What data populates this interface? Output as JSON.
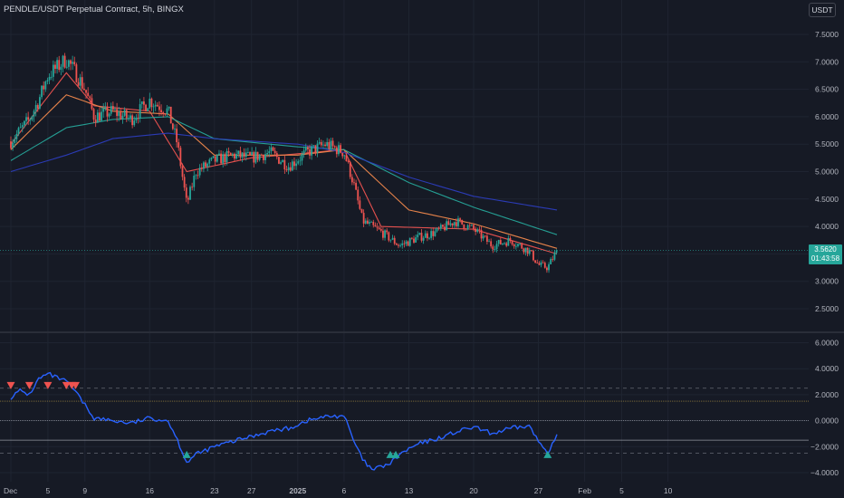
{
  "header": {
    "title": "PENDLE/USDT Perpetual Contract, 5h, BINGX",
    "currency_button": "USDT"
  },
  "price_label": {
    "price": "3.5620",
    "countdown": "01:43:58"
  },
  "colors": {
    "background": "#161a25",
    "candle_up": "#26a69a",
    "candle_down": "#ef5350",
    "ema_fast": "#ef5350",
    "ema_mid": "#f0884c",
    "ema_slow": "#26a69a",
    "ema_long": "#2c3dbd",
    "oscillator": "#2962ff",
    "signal_buy": "#26a69a",
    "signal_sell": "#ef5350"
  },
  "chart_data": [
    {
      "type": "candlestick",
      "title": "PENDLE/USDT Perpetual Contract, 5h, BINGX",
      "y_ticks": [
        "7.5000",
        "7.0000",
        "6.5000",
        "6.0000",
        "5.5000",
        "5.0000",
        "4.5000",
        "4.0000",
        "3.5000",
        "3.0000",
        "2.5000"
      ],
      "ylim": [
        2.3,
        7.8
      ],
      "x_ticks": [
        "Dec",
        "5",
        "9",
        "16",
        "23",
        "27",
        "2025",
        "6",
        "13",
        "20",
        "27",
        "Feb",
        "5",
        "10"
      ],
      "last_price": 3.562,
      "approx_close_path": [
        {
          "x": "Dec 1",
          "y": 5.55
        },
        {
          "x": "Dec 2",
          "y": 5.75
        },
        {
          "x": "Dec 3",
          "y": 5.95
        },
        {
          "x": "Dec 4",
          "y": 6.3
        },
        {
          "x": "Dec 5",
          "y": 6.75
        },
        {
          "x": "Dec 6",
          "y": 6.9
        },
        {
          "x": "Dec 7",
          "y": 7.05
        },
        {
          "x": "Dec 8",
          "y": 6.8
        },
        {
          "x": "Dec 9",
          "y": 6.5
        },
        {
          "x": "Dec 10",
          "y": 6.0
        },
        {
          "x": "Dec 12",
          "y": 6.1
        },
        {
          "x": "Dec 14",
          "y": 5.95
        },
        {
          "x": "Dec 16",
          "y": 6.3
        },
        {
          "x": "Dec 18",
          "y": 6.1
        },
        {
          "x": "Dec 19",
          "y": 5.5
        },
        {
          "x": "Dec 20",
          "y": 4.4
        },
        {
          "x": "Dec 21",
          "y": 5.0
        },
        {
          "x": "Dec 23",
          "y": 5.2
        },
        {
          "x": "Dec 25",
          "y": 5.3
        },
        {
          "x": "Dec 27",
          "y": 5.25
        },
        {
          "x": "Dec 29",
          "y": 5.35
        },
        {
          "x": "Dec 31",
          "y": 5.1
        },
        {
          "x": "Jan 2",
          "y": 5.35
        },
        {
          "x": "Jan 4",
          "y": 5.5
        },
        {
          "x": "Jan 6",
          "y": 5.35
        },
        {
          "x": "Jan 7",
          "y": 4.8
        },
        {
          "x": "Jan 8",
          "y": 4.1
        },
        {
          "x": "Jan 10",
          "y": 3.9
        },
        {
          "x": "Jan 12",
          "y": 3.65
        },
        {
          "x": "Jan 14",
          "y": 3.8
        },
        {
          "x": "Jan 16",
          "y": 3.9
        },
        {
          "x": "Jan 18",
          "y": 4.1
        },
        {
          "x": "Jan 20",
          "y": 3.95
        },
        {
          "x": "Jan 22",
          "y": 3.65
        },
        {
          "x": "Jan 24",
          "y": 3.75
        },
        {
          "x": "Jan 26",
          "y": 3.55
        },
        {
          "x": "Jan 27",
          "y": 3.3
        },
        {
          "x": "Jan 28",
          "y": 3.25
        },
        {
          "x": "Jan 29",
          "y": 3.562
        }
      ],
      "moving_averages": [
        {
          "color": "#ef5350",
          "path": [
            {
              "x": "Dec 1",
              "y": 5.5
            },
            {
              "x": "Dec 7",
              "y": 6.8
            },
            {
              "x": "Dec 10",
              "y": 6.2
            },
            {
              "x": "Dec 16",
              "y": 6.1
            },
            {
              "x": "Dec 20",
              "y": 5.0
            },
            {
              "x": "Dec 27",
              "y": 5.25
            },
            {
              "x": "Jan 6",
              "y": 5.4
            },
            {
              "x": "Jan 10",
              "y": 4.0
            },
            {
              "x": "Jan 20",
              "y": 3.95
            },
            {
              "x": "Jan 29",
              "y": 3.5
            }
          ]
        },
        {
          "color": "#f0884c",
          "path": [
            {
              "x": "Dec 1",
              "y": 5.4
            },
            {
              "x": "Dec 7",
              "y": 6.4
            },
            {
              "x": "Dec 12",
              "y": 6.1
            },
            {
              "x": "Dec 18",
              "y": 6.05
            },
            {
              "x": "Dec 23",
              "y": 5.3
            },
            {
              "x": "Jan 1",
              "y": 5.3
            },
            {
              "x": "Jan 6",
              "y": 5.4
            },
            {
              "x": "Jan 13",
              "y": 4.3
            },
            {
              "x": "Jan 20",
              "y": 4.05
            },
            {
              "x": "Jan 29",
              "y": 3.6
            }
          ]
        },
        {
          "color": "#26a69a",
          "path": [
            {
              "x": "Dec 1",
              "y": 5.2
            },
            {
              "x": "Dec 7",
              "y": 5.8
            },
            {
              "x": "Dec 12",
              "y": 5.95
            },
            {
              "x": "Dec 18",
              "y": 6.0
            },
            {
              "x": "Dec 23",
              "y": 5.6
            },
            {
              "x": "Jan 1",
              "y": 5.45
            },
            {
              "x": "Jan 6",
              "y": 5.4
            },
            {
              "x": "Jan 13",
              "y": 4.8
            },
            {
              "x": "Jan 20",
              "y": 4.35
            },
            {
              "x": "Jan 29",
              "y": 3.85
            }
          ]
        },
        {
          "color": "#2c3dbd",
          "path": [
            {
              "x": "Dec 1",
              "y": 5.0
            },
            {
              "x": "Dec 7",
              "y": 5.3
            },
            {
              "x": "Dec 12",
              "y": 5.6
            },
            {
              "x": "Dec 18",
              "y": 5.7
            },
            {
              "x": "Dec 23",
              "y": 5.6
            },
            {
              "x": "Jan 1",
              "y": 5.5
            },
            {
              "x": "Jan 6",
              "y": 5.35
            },
            {
              "x": "Jan 13",
              "y": 4.9
            },
            {
              "x": "Jan 20",
              "y": 4.55
            },
            {
              "x": "Jan 29",
              "y": 4.3
            }
          ]
        }
      ]
    },
    {
      "type": "line",
      "y_ticks": [
        "6.0000",
        "4.0000",
        "2.0000",
        "0.0000",
        "−2.0000",
        "−4.0000"
      ],
      "ylim": [
        -4.5,
        6.5
      ],
      "reference_lines": [
        2.5,
        1.5,
        0.0,
        -1.5,
        -2.5
      ],
      "series": [
        {
          "values": [
            {
              "x": "Dec 1",
              "y": 1.8
            },
            {
              "x": "Dec 2",
              "y": 2.3
            },
            {
              "x": "Dec 3",
              "y": 2.0
            },
            {
              "x": "Dec 4",
              "y": 3.2
            },
            {
              "x": "Dec 5",
              "y": 3.6
            },
            {
              "x": "Dec 6",
              "y": 3.3
            },
            {
              "x": "Dec 7",
              "y": 3.0
            },
            {
              "x": "Dec 8",
              "y": 2.2
            },
            {
              "x": "Dec 9",
              "y": 1.2
            },
            {
              "x": "Dec 10",
              "y": 0.2
            },
            {
              "x": "Dec 12",
              "y": 0.0
            },
            {
              "x": "Dec 14",
              "y": -0.2
            },
            {
              "x": "Dec 16",
              "y": 0.2
            },
            {
              "x": "Dec 18",
              "y": 0.0
            },
            {
              "x": "Dec 19",
              "y": -1.5
            },
            {
              "x": "Dec 20",
              "y": -3.2
            },
            {
              "x": "Dec 21",
              "y": -2.6
            },
            {
              "x": "Dec 23",
              "y": -2.0
            },
            {
              "x": "Dec 25",
              "y": -1.6
            },
            {
              "x": "Dec 27",
              "y": -1.2
            },
            {
              "x": "Dec 29",
              "y": -0.8
            },
            {
              "x": "Dec 31",
              "y": -0.6
            },
            {
              "x": "Jan 2",
              "y": 0.0
            },
            {
              "x": "Jan 4",
              "y": 0.3
            },
            {
              "x": "Jan 6",
              "y": 0.4
            },
            {
              "x": "Jan 7",
              "y": -1.5
            },
            {
              "x": "Jan 8",
              "y": -3.0
            },
            {
              "x": "Jan 9",
              "y": -3.8
            },
            {
              "x": "Jan 11",
              "y": -3.3
            },
            {
              "x": "Jan 12",
              "y": -2.6
            },
            {
              "x": "Jan 14",
              "y": -1.8
            },
            {
              "x": "Jan 16",
              "y": -1.4
            },
            {
              "x": "Jan 18",
              "y": -0.9
            },
            {
              "x": "Jan 20",
              "y": -0.5
            },
            {
              "x": "Jan 22",
              "y": -1.0
            },
            {
              "x": "Jan 24",
              "y": -0.6
            },
            {
              "x": "Jan 26",
              "y": -0.4
            },
            {
              "x": "Jan 27",
              "y": -1.6
            },
            {
              "x": "Jan 28",
              "y": -2.4
            },
            {
              "x": "Jan 29",
              "y": -1.2
            }
          ]
        }
      ],
      "sell_signals": [
        "Dec 1",
        "Dec 3",
        "Dec 5",
        "Dec 7",
        "Dec 7",
        "Dec 8"
      ],
      "buy_signals": [
        "Dec 20",
        "Jan 11",
        "Jan 11",
        "Jan 28"
      ]
    }
  ]
}
